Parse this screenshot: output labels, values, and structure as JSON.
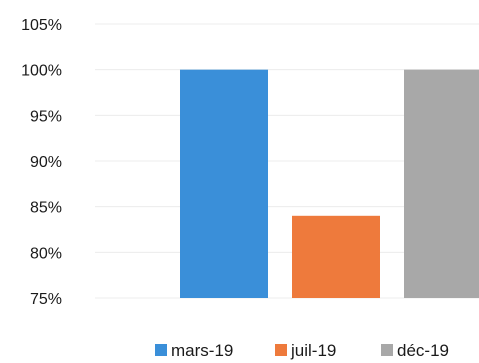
{
  "chart_data": {
    "type": "bar",
    "categories": [
      "mars-19",
      "juil-19",
      "déc-19"
    ],
    "series": [
      {
        "name": "mars-19",
        "value": 100,
        "color": "#3a8fd9"
      },
      {
        "name": "juil-19",
        "value": 84,
        "color": "#ee7a3c"
      },
      {
        "name": "déc-19",
        "value": 100,
        "color": "#a8a8a8"
      }
    ],
    "y_ticks": [
      "105%",
      "100%",
      "95%",
      "90%",
      "85%",
      "80%",
      "75%"
    ],
    "ylim": [
      75,
      105
    ],
    "grid": true,
    "legend_position": "bottom"
  }
}
